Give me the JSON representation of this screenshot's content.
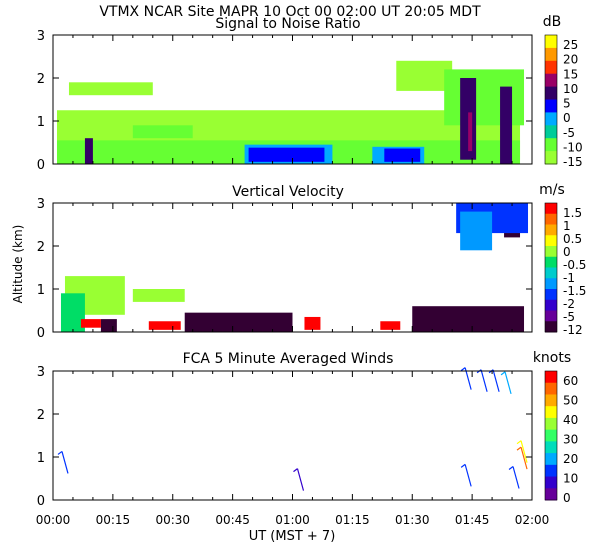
{
  "header": {
    "line": "VTMX   NCAR Site   MAPR 10 Oct 00   02:00 UT   20:05   MDT"
  },
  "xaxis": {
    "ticks": [
      "00:00",
      "00:15",
      "00:30",
      "00:45",
      "01:00",
      "01:15",
      "01:30",
      "01:45",
      "02:00"
    ],
    "label": "UT   (MST + 7)"
  },
  "ylabel": "Altitude (km)",
  "panels": [
    {
      "title": "Signal to Noise Ratio",
      "unit": "dB",
      "yticks": [
        "0",
        "1",
        "2",
        "3"
      ],
      "colorbar": {
        "colors": [
          "#ffff00",
          "#ff9900",
          "#ff3300",
          "#990066",
          "#330066",
          "#0000ff",
          "#00aaff",
          "#00cc99",
          "#66ff33",
          "#99ff33"
        ],
        "labels": [
          "25",
          "20",
          "15",
          "10",
          "5",
          "0",
          "-5",
          "-10",
          "-15"
        ]
      }
    },
    {
      "title": "Vertical Velocity",
      "unit": "m/s",
      "yticks": [
        "0",
        "1",
        "2",
        "3"
      ],
      "colorbar": {
        "colors": [
          "#ff0000",
          "#ff6600",
          "#ffaa00",
          "#ffff00",
          "#99ff33",
          "#00dd66",
          "#00cccc",
          "#0099ff",
          "#0033ff",
          "#3300cc",
          "#660099",
          "#330033"
        ],
        "labels": [
          "1.5",
          "1",
          "0.5",
          "0",
          "-0.5",
          "-1",
          "-1.5",
          "-2",
          "-5",
          "-12"
        ]
      }
    },
    {
      "title": "FCA 5 Minute Averaged Winds",
      "unit": "knots",
      "yticks": [
        "0",
        "1",
        "2",
        "3"
      ],
      "colorbar": {
        "colors": [
          "#ff0000",
          "#ff6600",
          "#ffaa00",
          "#ffff00",
          "#99ff33",
          "#33ff66",
          "#00ddbb",
          "#00aaff",
          "#0033ff",
          "#3300cc",
          "#660099"
        ],
        "labels": [
          "60",
          "50",
          "40",
          "30",
          "20",
          "10",
          "0"
        ]
      }
    }
  ],
  "chart_data": [
    {
      "type": "heatmap",
      "title": "Signal to Noise Ratio",
      "unit": "dB",
      "xlabel": "UT   (MST + 7)",
      "ylabel": "Altitude (km)",
      "xlim": [
        "00:00",
        "02:00"
      ],
      "ylim": [
        0,
        3
      ],
      "series": [
        {
          "name": "-15",
          "color": "#99ff33",
          "patches": [
            [
              "00:01",
              0.1,
              "01:57",
              1.25
            ],
            [
              "00:04",
              1.6,
              "00:25",
              1.9
            ],
            [
              "01:26",
              1.7,
              "01:40",
              2.4
            ]
          ]
        },
        {
          "name": "-10",
          "color": "#66ff33",
          "patches": [
            [
              "00:01",
              0.0,
              "01:57",
              0.55
            ],
            [
              "00:20",
              0.6,
              "00:35",
              0.9
            ],
            [
              "01:38",
              0.9,
              "01:58",
              2.2
            ]
          ]
        },
        {
          "name": "-5",
          "color": "#00aaff",
          "patches": [
            [
              "00:48",
              0.0,
              "01:10",
              0.45
            ],
            [
              "01:20",
              0.0,
              "01:33",
              0.4
            ]
          ]
        },
        {
          "name": "0",
          "color": "#0000ff",
          "patches": [
            [
              "00:49",
              0.05,
              "01:08",
              0.38
            ],
            [
              "01:23",
              0.05,
              "01:32",
              0.36
            ]
          ]
        },
        {
          "name": "5",
          "color": "#330066",
          "patches": [
            [
              "00:08",
              0.0,
              "00:10",
              0.6
            ],
            [
              "01:42",
              0.1,
              "01:46",
              2.0
            ],
            [
              "01:52",
              0.0,
              "01:55",
              1.8
            ]
          ]
        },
        {
          "name": "10",
          "color": "#990066",
          "patches": [
            [
              "01:44",
              0.3,
              "01:45",
              1.2
            ]
          ]
        }
      ]
    },
    {
      "type": "heatmap",
      "title": "Vertical Velocity",
      "unit": "m/s",
      "xlabel": "UT   (MST + 7)",
      "ylabel": "Altitude (km)",
      "xlim": [
        "00:00",
        "02:00"
      ],
      "ylim": [
        0,
        3
      ],
      "series": [
        {
          "name": "-0.5",
          "color": "#99ff33",
          "patches": [
            [
              "00:03",
              0.4,
              "00:18",
              1.3
            ],
            [
              "00:20",
              0.7,
              "00:33",
              1.0
            ]
          ]
        },
        {
          "name": "-1",
          "color": "#00dd66",
          "patches": [
            [
              "00:02",
              0.0,
              "00:08",
              0.9
            ]
          ]
        },
        {
          "name": "1.5",
          "color": "#ff0000",
          "patches": [
            [
              "00:07",
              0.1,
              "00:12",
              0.3
            ],
            [
              "00:24",
              0.05,
              "00:32",
              0.25
            ],
            [
              "00:52",
              0.05,
              "00:56",
              0.3
            ],
            [
              "01:03",
              0.05,
              "01:07",
              0.35
            ],
            [
              "01:22",
              0.05,
              "01:27",
              0.25
            ],
            [
              "01:46",
              0.05,
              "01:52",
              0.3
            ]
          ]
        },
        {
          "name": "-12",
          "color": "#330033",
          "patches": [
            [
              "00:12",
              0.0,
              "00:16",
              0.3
            ],
            [
              "00:33",
              0.0,
              "01:00",
              0.45
            ],
            [
              "01:30",
              0.0,
              "01:58",
              0.6
            ],
            [
              "01:53",
              2.2,
              "01:57",
              2.9
            ]
          ]
        },
        {
          "name": "-2",
          "color": "#0033ff",
          "patches": [
            [
              "01:41",
              2.3,
              "01:59",
              3.0
            ]
          ]
        },
        {
          "name": "-1.5",
          "color": "#0099ff",
          "patches": [
            [
              "01:42",
              1.9,
              "01:50",
              2.8
            ]
          ]
        }
      ]
    },
    {
      "type": "scatter",
      "title": "FCA 5 Minute Averaged Winds",
      "unit": "knots",
      "xlabel": "UT   (MST + 7)",
      "ylabel": "Altitude (km)",
      "xlim": [
        "00:00",
        "02:00"
      ],
      "ylim": [
        0,
        3
      ],
      "series": [
        {
          "name": "barbs",
          "points": [
            {
              "x": "00:03",
              "y": 0.85,
              "speed": 15
            },
            {
              "x": "01:02",
              "y": 0.45,
              "speed": 5
            },
            {
              "x": "01:44",
              "y": 2.8,
              "speed": 15
            },
            {
              "x": "01:48",
              "y": 2.75,
              "speed": 15
            },
            {
              "x": "01:51",
              "y": 2.75,
              "speed": 15
            },
            {
              "x": "01:54",
              "y": 2.7,
              "speed": 20
            },
            {
              "x": "01:44",
              "y": 0.55,
              "speed": 15
            },
            {
              "x": "01:56",
              "y": 0.5,
              "speed": 10
            },
            {
              "x": "01:58",
              "y": 1.1,
              "speed": 45
            },
            {
              "x": "01:58",
              "y": 0.95,
              "speed": 55
            }
          ]
        }
      ]
    }
  ]
}
